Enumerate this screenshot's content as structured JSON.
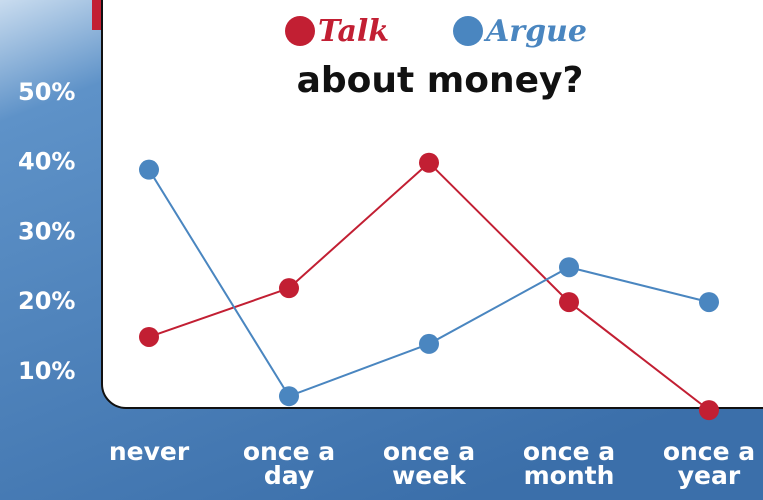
{
  "chart_data": {
    "type": "line",
    "title": "about money?",
    "categories": [
      "never",
      "once a day",
      "once a week",
      "once a month",
      "once a year"
    ],
    "series": [
      {
        "name": "Talk",
        "color": "#c21f33",
        "values": [
          15,
          22,
          40,
          20,
          4.5
        ]
      },
      {
        "name": "Argue",
        "color": "#4a86c0",
        "values": [
          39,
          6.5,
          14,
          25,
          20
        ]
      }
    ],
    "ylim": [
      0,
      50
    ],
    "yticks": [
      {
        "value": 10,
        "label": "10%"
      },
      {
        "value": 20,
        "label": "20%"
      },
      {
        "value": 30,
        "label": "30%"
      },
      {
        "value": 40,
        "label": "40%"
      },
      {
        "value": 50,
        "label": "50%"
      }
    ],
    "grid": false
  }
}
